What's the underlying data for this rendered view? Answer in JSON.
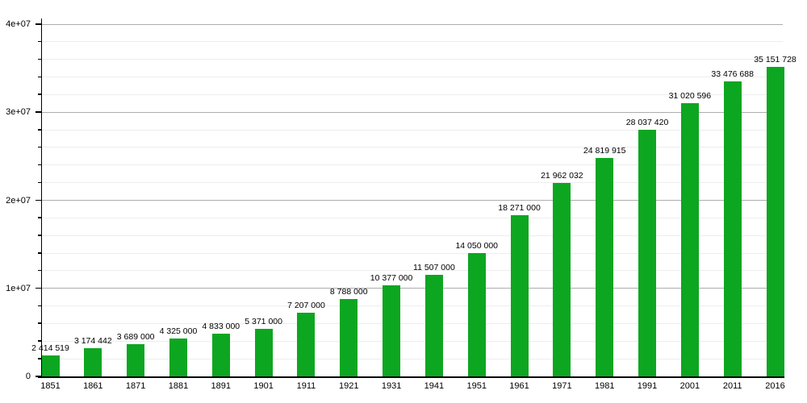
{
  "chart_data": {
    "type": "bar",
    "title": "",
    "xlabel": "",
    "ylabel": "",
    "categories": [
      "1851",
      "1861",
      "1871",
      "1881",
      "1891",
      "1901",
      "1911",
      "1921",
      "1931",
      "1941",
      "1951",
      "1961",
      "1971",
      "1981",
      "1991",
      "2001",
      "2011",
      "2016"
    ],
    "values": [
      2414519,
      3174442,
      3689000,
      4325000,
      4833000,
      5371000,
      7207000,
      8788000,
      10377000,
      11507000,
      14050000,
      18271000,
      21962032,
      24819915,
      28037420,
      31020596,
      33476688,
      35151728
    ],
    "bar_labels": [
      "2 414 519",
      "3 174 442",
      "3 689 000",
      "4 325 000",
      "4 833 000",
      "5 371 000",
      "7 207 000",
      "8 788 000",
      "10 377 000",
      "11 507 000",
      "14 050 000",
      "18 271 000",
      "21 962 032",
      "24 819 915",
      "28 037 420",
      "31 020 596",
      "33 476 688",
      "35 151 728"
    ],
    "ylim": [
      0,
      40000000
    ],
    "y_ticks": [
      {
        "value": 0,
        "label": "0"
      },
      {
        "value": 10000000,
        "label": "1e+07"
      },
      {
        "value": 20000000,
        "label": "2e+07"
      },
      {
        "value": 30000000,
        "label": "3e+07"
      },
      {
        "value": 40000000,
        "label": "4e+07"
      }
    ],
    "minor_grid_step": 2000000,
    "grid": true,
    "legend_position": "none",
    "colors": {
      "bar": "#0da621",
      "major_gridline": "#adadad",
      "minor_gridline": "#ededed",
      "axis": "#000000",
      "text": "#000000",
      "background": "#ffffff"
    }
  }
}
